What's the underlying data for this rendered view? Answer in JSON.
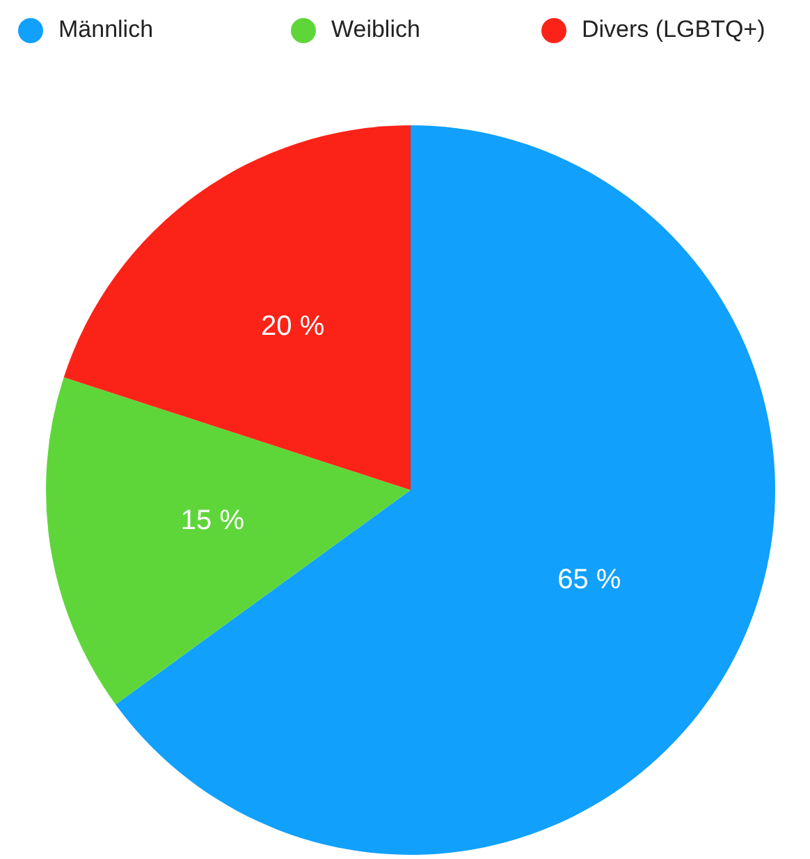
{
  "chart_data": {
    "type": "pie",
    "categories": [
      "Männlich",
      "Weiblich",
      "Divers (LGBTQ+)"
    ],
    "values": [
      65,
      15,
      20
    ],
    "colors": [
      "#11a0fb",
      "#5ed63a",
      "#fb2317"
    ],
    "value_labels": [
      "65 %",
      "15 %",
      "20 %"
    ],
    "legend": "top"
  }
}
